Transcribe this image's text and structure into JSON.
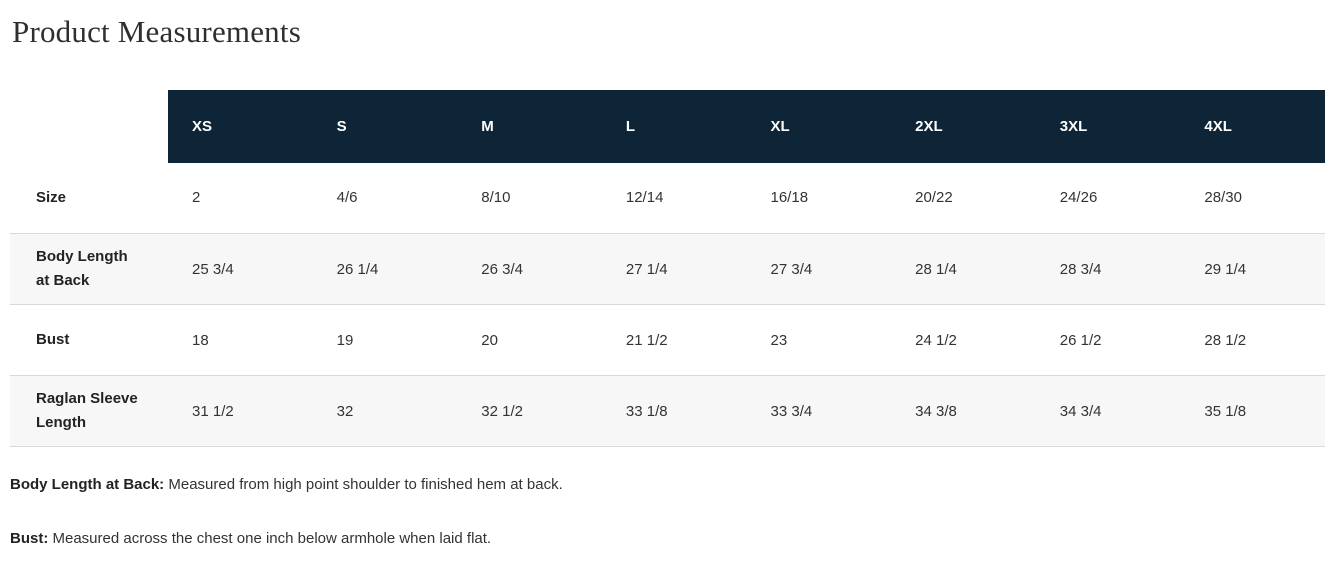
{
  "page": {
    "title": "Product Measurements"
  },
  "table": {
    "columns": [
      "XS",
      "S",
      "M",
      "L",
      "XL",
      "2XL",
      "3XL",
      "4XL"
    ],
    "rows": [
      {
        "label": "Size",
        "values": [
          "2",
          "4/6",
          "8/10",
          "12/14",
          "16/18",
          "20/22",
          "24/26",
          "28/30"
        ]
      },
      {
        "label": "Body Length at Back",
        "values": [
          "25 3/4",
          "26 1/4",
          "26 3/4",
          "27 1/4",
          "27 3/4",
          "28 1/4",
          "28 3/4",
          "29 1/4"
        ]
      },
      {
        "label": "Bust",
        "values": [
          "18",
          "19",
          "20",
          "21 1/2",
          "23",
          "24 1/2",
          "26 1/2",
          "28 1/2"
        ]
      },
      {
        "label": "Raglan Sleeve Length",
        "values": [
          "31 1/2",
          "32",
          "32 1/2",
          "33 1/8",
          "33 3/4",
          "34 3/8",
          "34 3/4",
          "35 1/8"
        ]
      }
    ]
  },
  "footnotes": [
    {
      "term": "Body Length at Back:",
      "definition": "Measured from high point shoulder to finished hem at back."
    },
    {
      "term": "Bust:",
      "definition": "Measured across the chest one inch below armhole when laid flat."
    }
  ],
  "colors": {
    "header_bg": "#0d2536",
    "header_text": "#ffffff",
    "stripe_bg": "#f7f7f7",
    "border": "#d9d9d9",
    "text": "#333333"
  }
}
